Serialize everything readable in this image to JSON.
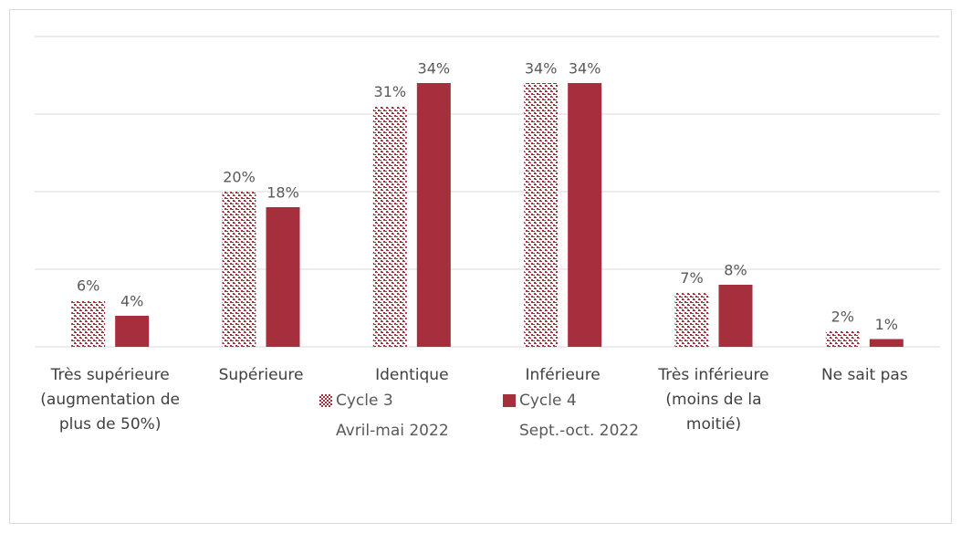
{
  "chart_data": {
    "type": "bar",
    "categories": [
      "Très supérieure (augmentation de plus de 50%)",
      "Supérieure",
      "Identique",
      "Inférieure",
      "Très inférieure (moins de la moitié)",
      "Ne sait pas"
    ],
    "series": [
      {
        "name": "Cycle 3\nAvril-mai 2022",
        "color": "#a52f3d",
        "pattern": "dots",
        "values": [
          6,
          20,
          31,
          34,
          7,
          2
        ],
        "value_labels": [
          "6%",
          "20%",
          "31%",
          "34%",
          "7%",
          "2%"
        ]
      },
      {
        "name": "Cycle 4\nSept.-oct. 2022",
        "color": "#a52f3d",
        "values": [
          4,
          18,
          34,
          34,
          8,
          1
        ],
        "value_labels": [
          "4%",
          "18%",
          "34%",
          "34%",
          "8%",
          "1%"
        ]
      }
    ],
    "ylim": [
      0,
      40
    ],
    "yticks": [
      0,
      10,
      20,
      30,
      40
    ],
    "grid": true,
    "legend": "bottom"
  }
}
